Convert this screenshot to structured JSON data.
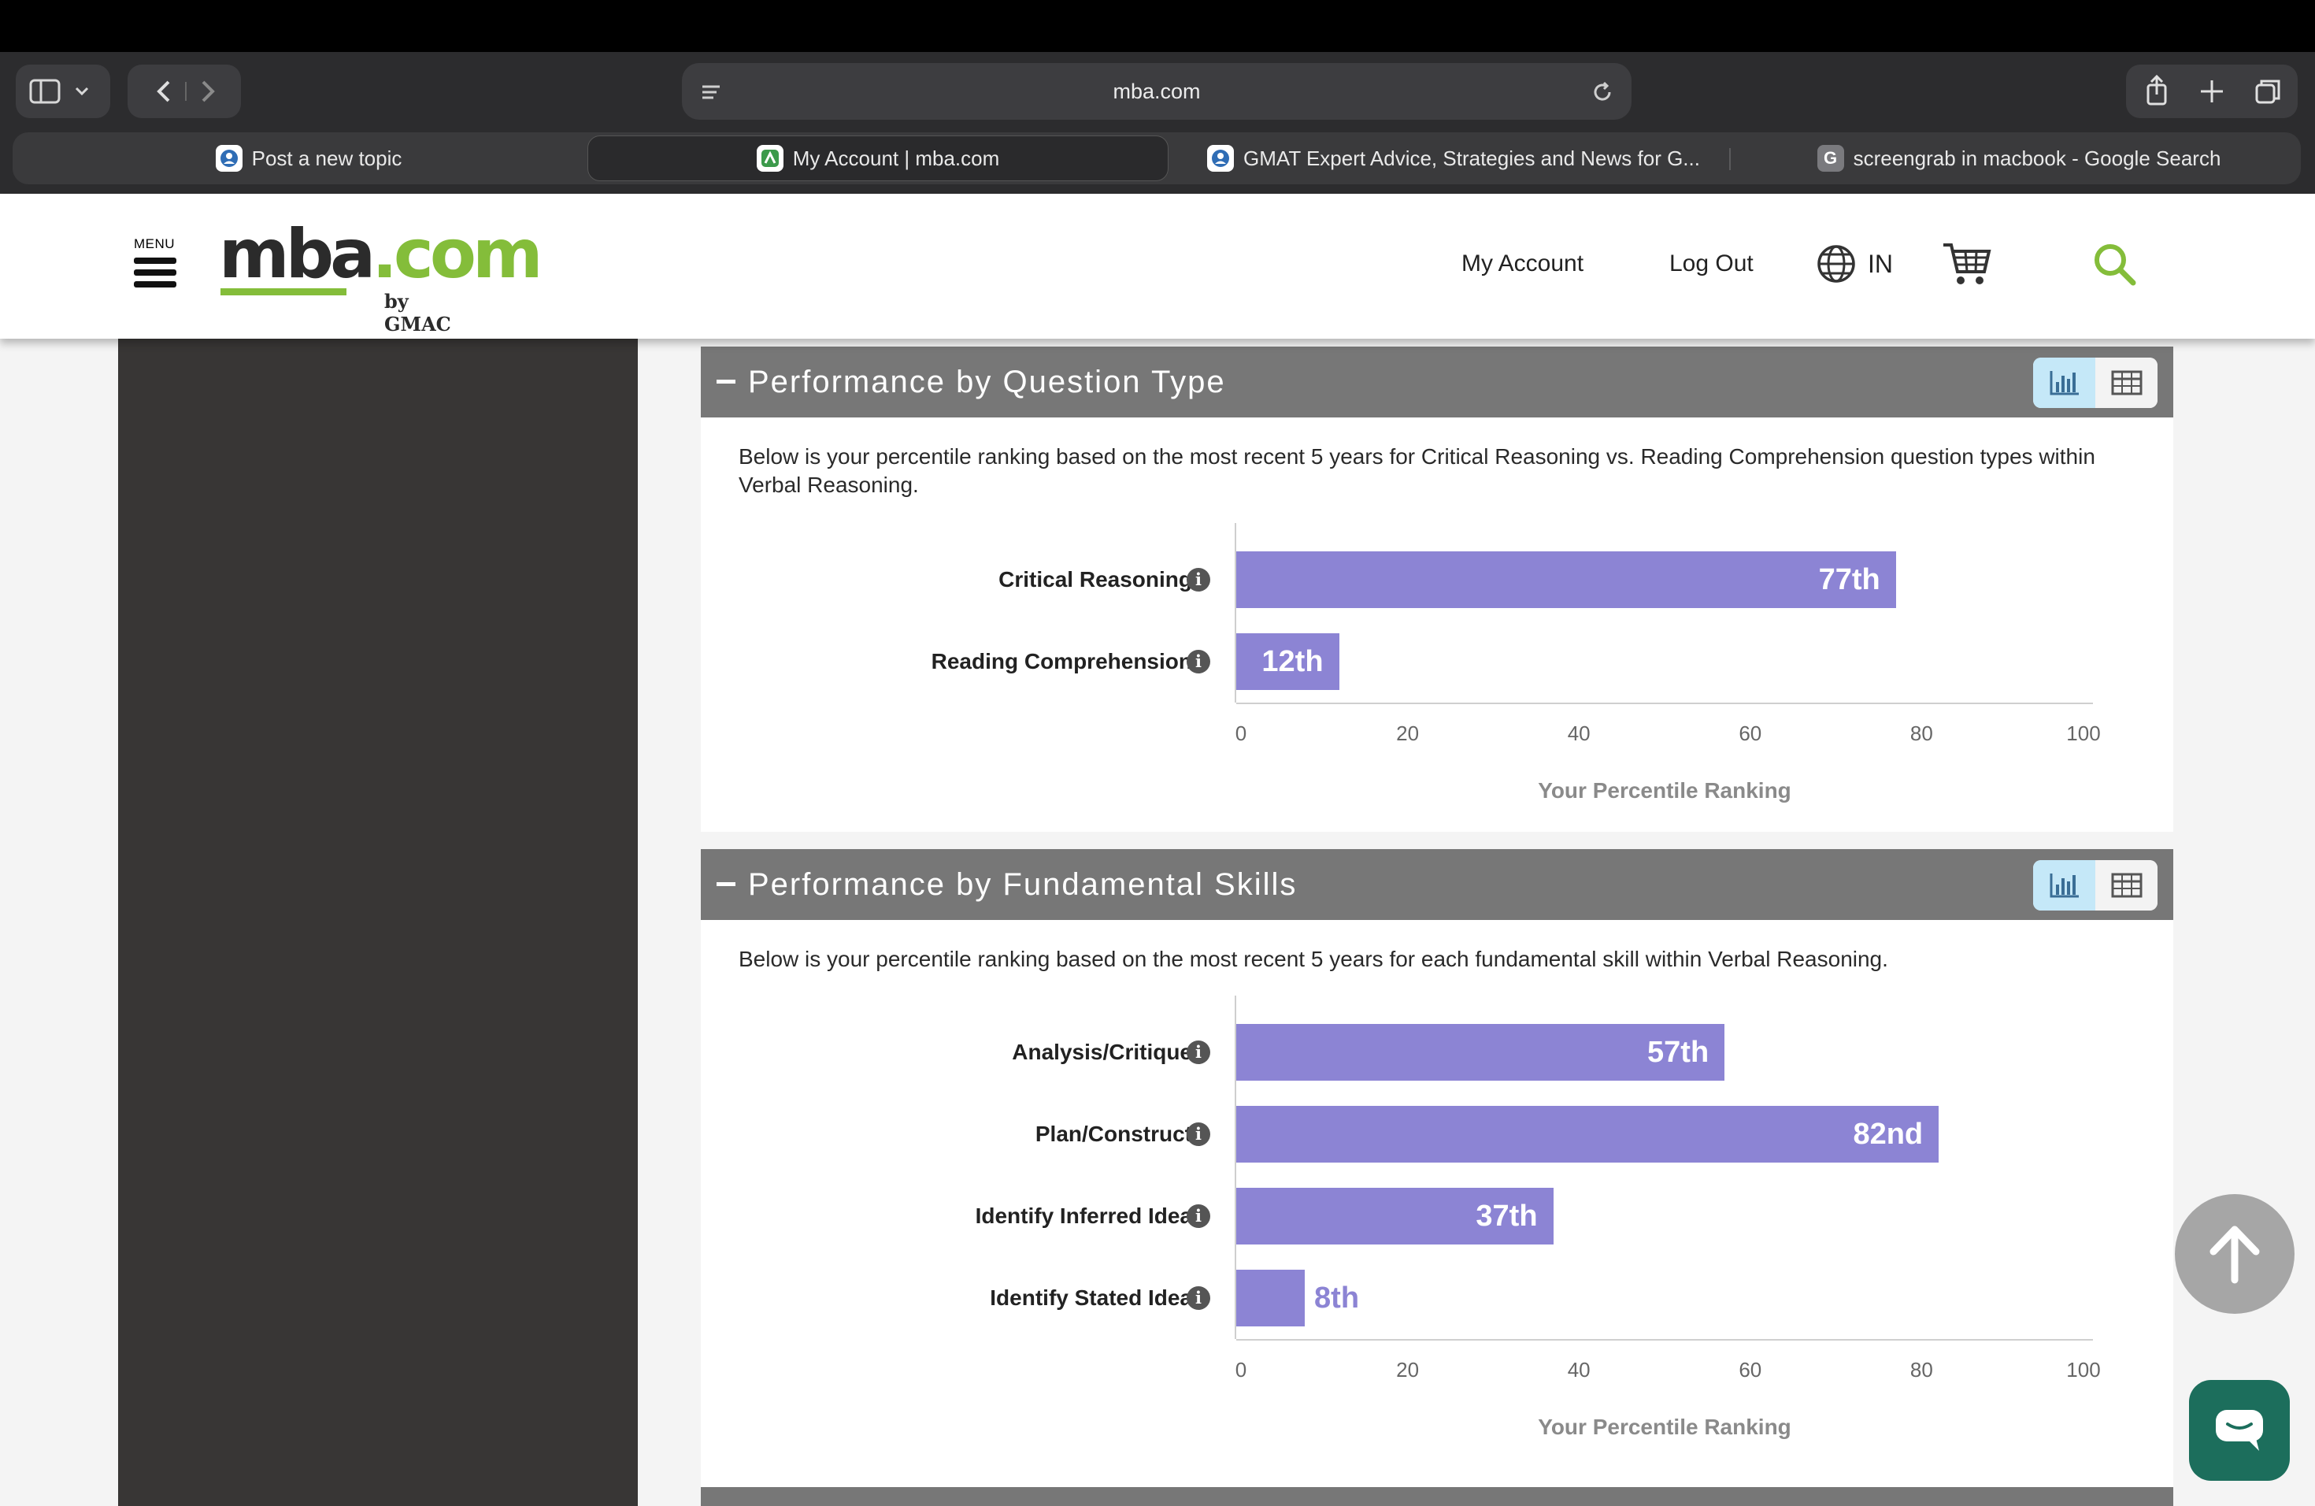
{
  "browser": {
    "url": "mba.com",
    "tabs": [
      {
        "label": "Post a new topic",
        "icon": "gmat-club-favicon-icon"
      },
      {
        "label": "My Account | mba.com",
        "icon": "mba-favicon-icon",
        "active": true
      },
      {
        "label": "GMAT Expert Advice, Strategies and News for G...",
        "icon": "gmat-club-favicon-icon"
      },
      {
        "label": "screengrab in macbook - Google Search",
        "icon": "google-favicon-icon"
      }
    ]
  },
  "header": {
    "menu_label": "MENU",
    "logo_main": "mba",
    "logo_dotcom": ".com",
    "logo_by": "by GMAC",
    "my_account": "My Account",
    "log_out": "Log Out",
    "region": "IN",
    "colors": {
      "brand_green": "#84bd3a"
    }
  },
  "sections": [
    {
      "title": "Performance by Question Type",
      "description": "Below is your percentile ranking based on the most recent 5 years for Critical Reasoning vs. Reading Comprehension question types within Verbal Reasoning."
    },
    {
      "title": "Performance by Fundamental Skills",
      "description": "Below is your percentile ranking based on the most recent 5 years for each fundamental skill within Verbal Reasoning."
    }
  ],
  "chart_data": [
    {
      "type": "bar",
      "orientation": "horizontal",
      "categories": [
        "Critical Reasoning",
        "Reading Comprehension"
      ],
      "values": [
        77,
        12
      ],
      "value_labels": [
        "77th",
        "12th"
      ],
      "xlabel": "Your Percentile Ranking",
      "xlim": [
        0,
        100
      ],
      "ticks": [
        "0",
        "20",
        "40",
        "60",
        "80",
        "100"
      ],
      "bar_color": "#8c84d4"
    },
    {
      "type": "bar",
      "orientation": "horizontal",
      "categories": [
        "Analysis/Critique",
        "Plan/Construct",
        "Identify Inferred Idea",
        "Identify Stated Idea"
      ],
      "values": [
        57,
        82,
        37,
        8
      ],
      "value_labels": [
        "57th",
        "82nd",
        "37th",
        "8th"
      ],
      "xlabel": "Your Percentile Ranking",
      "xlim": [
        0,
        100
      ],
      "ticks": [
        "0",
        "20",
        "40",
        "60",
        "80",
        "100"
      ],
      "bar_color": "#8c84d4"
    }
  ]
}
